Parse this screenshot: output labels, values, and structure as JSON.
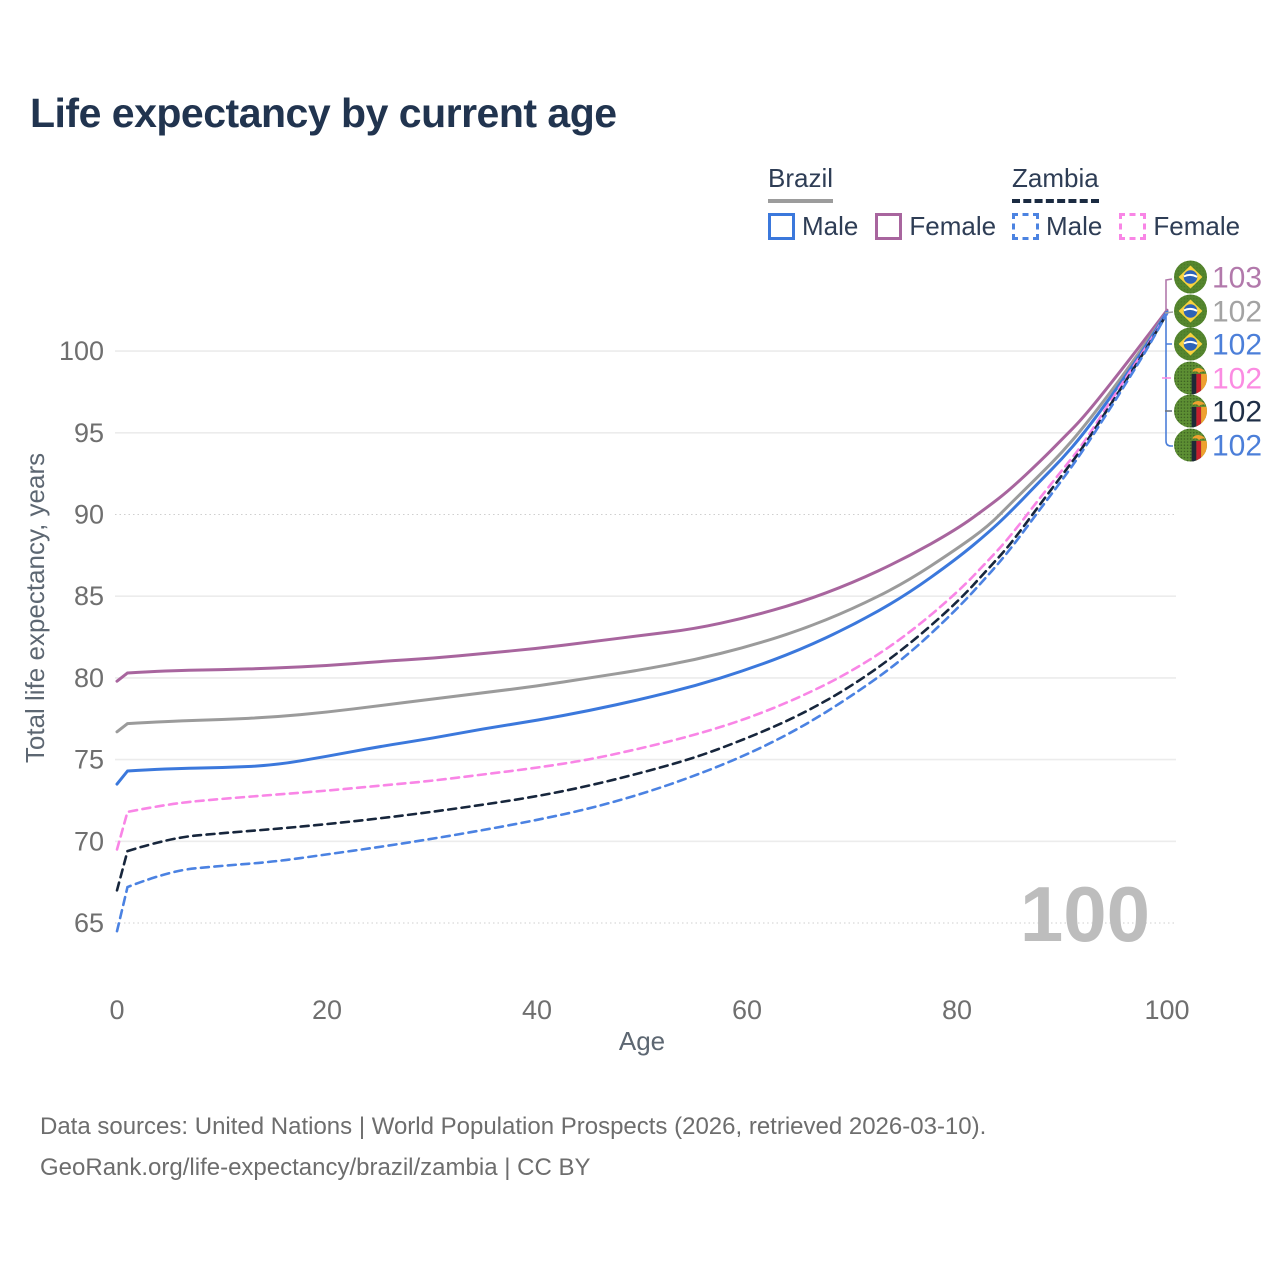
{
  "page": {
    "title": "Life expectancy by current age"
  },
  "legend": {
    "groups": [
      {
        "label": "Brazil",
        "underline": "solid",
        "underline_color": "#9c9c9c",
        "items": [
          {
            "label": "Male",
            "color": "#3b78dc",
            "dashed": false
          },
          {
            "label": "Female",
            "color": "#a8659e",
            "dashed": false
          }
        ]
      },
      {
        "label": "Zambia",
        "underline": "dashed",
        "underline_color": "#1b2b42",
        "items": [
          {
            "label": "Male",
            "color": "#4c83e1",
            "dashed": true
          },
          {
            "label": "Female",
            "color": "#f985e6",
            "dashed": true
          }
        ]
      }
    ]
  },
  "chart_data": {
    "type": "line",
    "title": "Life expectancy by current age",
    "xlabel": "Age",
    "ylabel": "Total life expectancy, years",
    "x_ticks": [
      0,
      20,
      40,
      60,
      80,
      100
    ],
    "y_ticks": [
      65,
      70,
      75,
      80,
      85,
      90,
      95,
      100
    ],
    "dotted_gridlines": [
      65,
      90
    ],
    "xlim": [
      0,
      100
    ],
    "ylim": [
      63.5,
      103.5
    ],
    "grid": true,
    "legend_position": "top-right",
    "watermark": "100",
    "ages": [
      0,
      1,
      5,
      10,
      15,
      20,
      25,
      30,
      35,
      40,
      45,
      50,
      55,
      60,
      65,
      70,
      75,
      80,
      83,
      85,
      88,
      90,
      92,
      95,
      98,
      100
    ],
    "series": [
      {
        "name": "Brazil Female",
        "country": "Brazil",
        "sex": "Female",
        "color": "#a8659e",
        "dashed": false,
        "end_label": "103",
        "end_label_color": "#b279ab",
        "flag": "brazil",
        "values": [
          79.8,
          80.3,
          80.45,
          80.5,
          80.6,
          80.75,
          81.0,
          81.2,
          81.5,
          81.8,
          82.2,
          82.6,
          83.0,
          83.7,
          84.6,
          85.8,
          87.3,
          89.1,
          90.5,
          91.5,
          93.3,
          94.6,
          95.9,
          98.3,
          100.8,
          102.5
        ]
      },
      {
        "name": "Brazil Both sexes",
        "country": "Brazil",
        "sex": "Both",
        "color": "#9b9b9b",
        "dashed": false,
        "end_label": "102",
        "end_label_color": "#a3a3a3",
        "flag": "brazil",
        "values": [
          76.7,
          77.2,
          77.35,
          77.45,
          77.6,
          77.9,
          78.3,
          78.7,
          79.1,
          79.5,
          80.0,
          80.5,
          81.1,
          81.9,
          82.9,
          84.2,
          85.8,
          87.9,
          89.3,
          90.6,
          92.5,
          93.8,
          95.3,
          97.8,
          100.5,
          102.4
        ]
      },
      {
        "name": "Brazil Male",
        "country": "Brazil",
        "sex": "Male",
        "color": "#3b78dc",
        "dashed": false,
        "end_label": "102",
        "end_label_color": "#4c7fd9",
        "flag": "brazil",
        "values": [
          73.5,
          74.3,
          74.45,
          74.5,
          74.65,
          75.2,
          75.8,
          76.3,
          76.9,
          77.4,
          78.0,
          78.7,
          79.5,
          80.5,
          81.7,
          83.2,
          85.0,
          87.3,
          88.9,
          90.1,
          92.1,
          93.4,
          94.9,
          97.5,
          100.3,
          102.4
        ]
      },
      {
        "name": "Zambia Female",
        "country": "Zambia",
        "sex": "Female",
        "color": "#f985e6",
        "dashed": true,
        "end_label": "102",
        "end_label_color": "#fb8ce2",
        "flag": "zambia",
        "values": [
          69.5,
          71.8,
          72.3,
          72.6,
          72.85,
          73.1,
          73.4,
          73.7,
          74.1,
          74.5,
          75.0,
          75.7,
          76.5,
          77.5,
          78.8,
          80.4,
          82.5,
          85.2,
          87.2,
          88.6,
          91.1,
          92.7,
          94.3,
          97.3,
          100.2,
          102.3
        ]
      },
      {
        "name": "Zambia Both sexes",
        "country": "Zambia",
        "sex": "Both",
        "color": "#17263c",
        "dashed": true,
        "end_label": "102",
        "end_label_color": "#1f2f47",
        "flag": "zambia",
        "values": [
          67.0,
          69.4,
          70.2,
          70.5,
          70.75,
          71.05,
          71.4,
          71.8,
          72.25,
          72.75,
          73.4,
          74.2,
          75.1,
          76.3,
          77.7,
          79.5,
          81.8,
          84.6,
          86.7,
          88.1,
          90.7,
          92.4,
          94.1,
          97.1,
          100.1,
          102.3
        ]
      },
      {
        "name": "Zambia Male",
        "country": "Zambia",
        "sex": "Male",
        "color": "#4b82e2",
        "dashed": true,
        "end_label": "102",
        "end_label_color": "#4c7fd9",
        "flag": "zambia",
        "values": [
          64.5,
          67.2,
          68.2,
          68.5,
          68.75,
          69.2,
          69.65,
          70.15,
          70.7,
          71.3,
          72.0,
          72.9,
          74.0,
          75.3,
          76.9,
          78.9,
          81.2,
          84.2,
          86.3,
          87.8,
          90.4,
          92.1,
          93.9,
          96.9,
          100.0,
          102.3
        ]
      }
    ]
  },
  "footer": {
    "line1": "Data sources: United Nations | World Population Prospects (2026, retrieved 2026-03-10).",
    "line2": "GeoRank.org/life-expectancy/brazil/zambia | CC BY"
  }
}
